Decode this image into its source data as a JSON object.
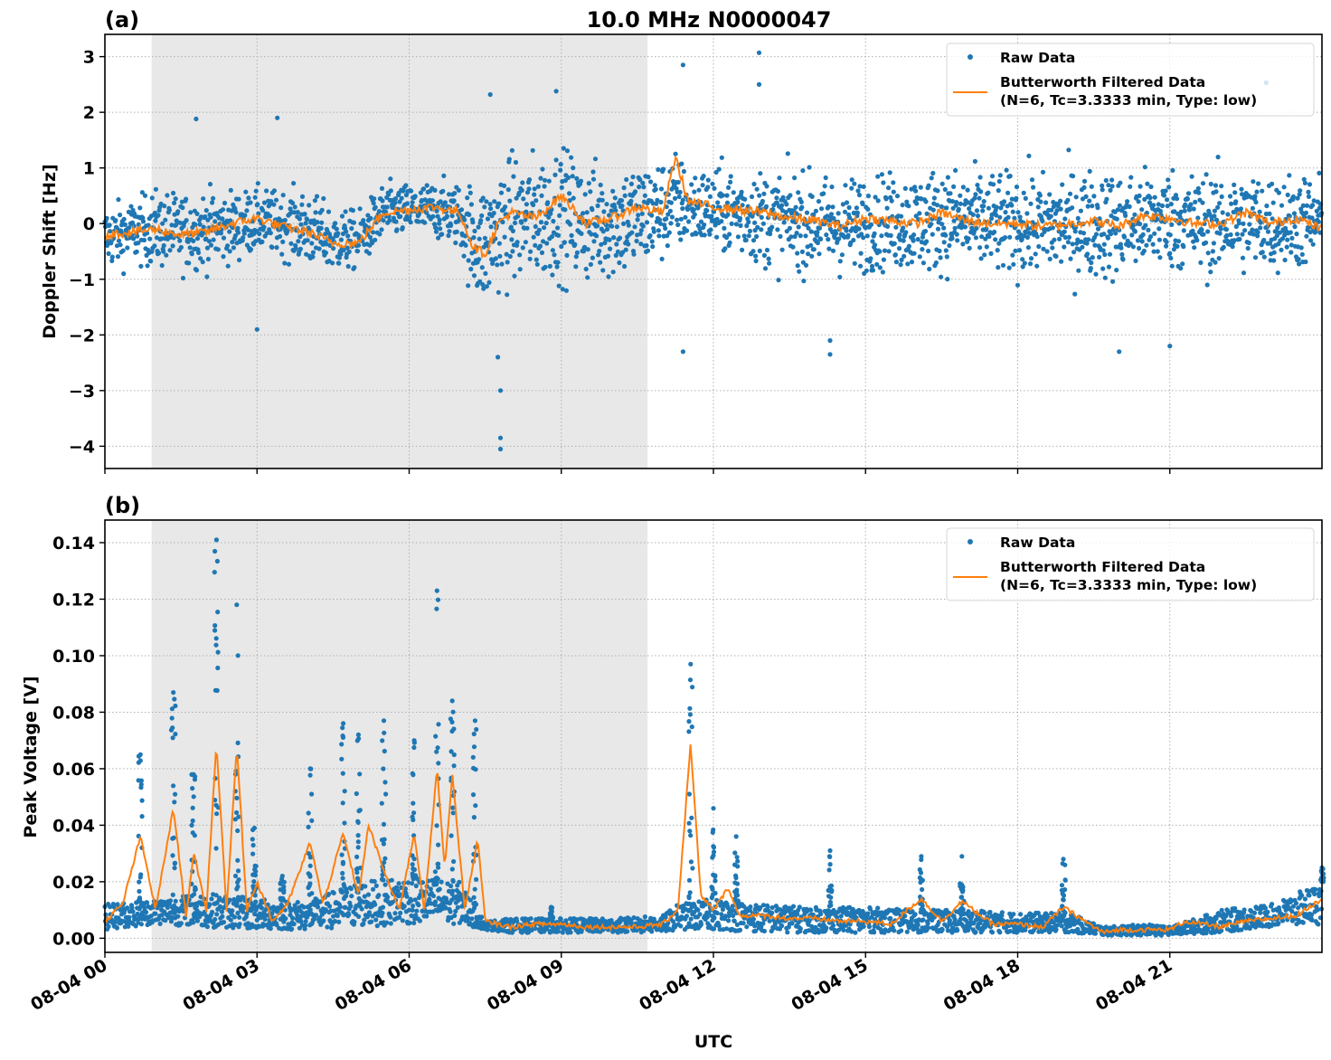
{
  "figure": {
    "title": "10.0 MHz N0000047",
    "xlabel": "UTC",
    "x_tick_labels": [
      "08-04 00",
      "08-04 03",
      "08-04 06",
      "08-04 09",
      "08-04 12",
      "08-04 15",
      "08-04 18",
      "08-04 21"
    ]
  },
  "colors": {
    "raw": "#1f77b4",
    "filtered": "#ff7f0e",
    "shade": "#e8e8e8",
    "grid": "#b0b0b0"
  },
  "chart_data": [
    {
      "type": "scatter",
      "panel_label": "(a)",
      "title": "10.0 MHz N0000047",
      "xlabel": "",
      "ylabel": "Doppler Shift [Hz]",
      "x_unit": "hours UTC since 08-04 00:00",
      "xlim": [
        0,
        24
      ],
      "ylim": [
        -4.4,
        3.4
      ],
      "y_ticks": [
        3,
        2,
        1,
        0,
        -1,
        -2,
        -3,
        -4
      ],
      "y_tick_labels": [
        "3",
        "2",
        "1",
        "0",
        "−1",
        "−2",
        "−3",
        "−4"
      ],
      "grid": true,
      "shaded_interval_hours": [
        0.92,
        10.7
      ],
      "legend": {
        "position": "top-right",
        "entries": [
          "Raw Data",
          "Butterworth Filtered Data",
          "(N=6, Tc=3.3333 min, Type: low)"
        ]
      },
      "series": [
        {
          "name": "Raw Data",
          "kind": "scatter",
          "x": [
            0,
            0.5,
            1,
            1.5,
            2,
            2.5,
            3,
            3.5,
            4,
            4.5,
            5,
            5.5,
            6,
            6.5,
            7,
            7.25,
            7.5,
            7.75,
            8,
            8.5,
            9,
            9.5,
            10,
            10.5,
            11,
            11.25,
            11.5,
            12,
            12.5,
            13,
            13.5,
            14,
            14.5,
            15,
            15.5,
            16,
            16.5,
            17,
            17.5,
            18,
            18.5,
            19,
            19.5,
            20,
            20.5,
            21,
            21.5,
            22,
            22.5,
            23,
            23.5,
            24
          ],
          "center": [
            -0.25,
            -0.15,
            -0.1,
            -0.15,
            -0.1,
            -0.05,
            0.05,
            0.0,
            -0.1,
            -0.3,
            -0.3,
            0.2,
            0.25,
            0.25,
            0.15,
            -0.3,
            -0.4,
            -0.1,
            0.05,
            0.1,
            0.2,
            0.0,
            0.05,
            0.1,
            0.25,
            0.4,
            0.3,
            0.25,
            0.2,
            0.1,
            0.05,
            0.0,
            -0.05,
            0.0,
            0.05,
            0.0,
            0.1,
            0.05,
            0.0,
            0.0,
            -0.05,
            0.0,
            0.0,
            -0.05,
            0.05,
            0.1,
            0.0,
            0.0,
            0.05,
            0.0,
            0.05,
            0.0
          ],
          "spread": [
            0.5,
            0.5,
            0.6,
            0.6,
            0.6,
            0.55,
            0.5,
            0.5,
            0.6,
            0.5,
            0.45,
            0.45,
            0.4,
            0.45,
            0.5,
            0.9,
            1.0,
            1.0,
            1.0,
            1.0,
            1.0,
            0.95,
            0.9,
            0.9,
            0.8,
            0.8,
            0.6,
            0.65,
            0.7,
            0.75,
            0.75,
            0.75,
            0.75,
            0.75,
            0.75,
            0.8,
            0.8,
            0.8,
            0.8,
            0.8,
            0.8,
            0.85,
            0.85,
            0.85,
            0.8,
            0.8,
            0.8,
            0.8,
            0.8,
            0.75,
            0.75,
            0.75
          ],
          "y_min": -4.05,
          "y_max": 3.07
        },
        {
          "name": "Butterworth Filtered Data",
          "kind": "line",
          "x": [
            0,
            0.5,
            1,
            1.5,
            2,
            2.5,
            3,
            3.5,
            4,
            4.5,
            5,
            5.5,
            6,
            6.5,
            7,
            7.25,
            7.5,
            7.75,
            8,
            8.5,
            9,
            9.5,
            10,
            10.5,
            11,
            11.25,
            11.5,
            12,
            12.5,
            13,
            13.5,
            14,
            14.5,
            15,
            15.5,
            16,
            16.5,
            17,
            17.5,
            18,
            18.5,
            19,
            19.5,
            20,
            20.5,
            21,
            21.5,
            22,
            22.5,
            23,
            23.5,
            24
          ],
          "y": [
            -0.2,
            -0.15,
            -0.1,
            -0.2,
            -0.15,
            0.0,
            0.1,
            -0.05,
            -0.15,
            -0.35,
            -0.35,
            0.2,
            0.25,
            0.3,
            0.2,
            -0.4,
            -0.55,
            0.0,
            0.2,
            0.1,
            0.5,
            0.0,
            0.1,
            0.3,
            0.2,
            1.2,
            0.4,
            0.3,
            0.25,
            0.2,
            0.1,
            0.05,
            -0.05,
            0.1,
            0.05,
            0.0,
            0.2,
            0.05,
            0.0,
            0.0,
            -0.05,
            0.0,
            0.05,
            -0.05,
            0.15,
            0.1,
            0.0,
            0.0,
            0.2,
            0.0,
            0.1,
            -0.1
          ]
        }
      ]
    },
    {
      "type": "scatter",
      "panel_label": "(b)",
      "title": "",
      "xlabel": "UTC",
      "ylabel": "Peak Voltage [V]",
      "x_unit": "hours UTC since 08-04 00:00",
      "xlim": [
        0,
        24
      ],
      "ylim": [
        -0.005,
        0.148
      ],
      "y_ticks": [
        0.14,
        0.12,
        0.1,
        0.08,
        0.06,
        0.04,
        0.02,
        0.0
      ],
      "y_tick_labels": [
        "0.14",
        "0.12",
        "0.10",
        "0.08",
        "0.06",
        "0.04",
        "0.02",
        "0.00"
      ],
      "grid": true,
      "shaded_interval_hours": [
        0.92,
        10.7
      ],
      "legend": {
        "position": "top-right",
        "entries": [
          "Raw Data",
          "Butterworth Filtered Data",
          "(N=6, Tc=3.3333 min, Type: low)"
        ]
      },
      "series": [
        {
          "name": "Raw Data",
          "kind": "scatter",
          "peaks": [
            {
              "x": 0.7,
              "y": 0.065
            },
            {
              "x": 1.35,
              "y": 0.087
            },
            {
              "x": 1.75,
              "y": 0.058
            },
            {
              "x": 2.2,
              "y": 0.141
            },
            {
              "x": 2.6,
              "y": 0.118
            },
            {
              "x": 2.95,
              "y": 0.039
            },
            {
              "x": 3.5,
              "y": 0.022
            },
            {
              "x": 4.05,
              "y": 0.06
            },
            {
              "x": 4.7,
              "y": 0.076
            },
            {
              "x": 5.0,
              "y": 0.072
            },
            {
              "x": 5.5,
              "y": 0.077
            },
            {
              "x": 6.1,
              "y": 0.07
            },
            {
              "x": 6.55,
              "y": 0.123
            },
            {
              "x": 6.85,
              "y": 0.084
            },
            {
              "x": 7.3,
              "y": 0.077
            },
            {
              "x": 8.8,
              "y": 0.011
            },
            {
              "x": 11.55,
              "y": 0.097
            },
            {
              "x": 12.0,
              "y": 0.046
            },
            {
              "x": 12.45,
              "y": 0.036
            },
            {
              "x": 14.3,
              "y": 0.031
            },
            {
              "x": 16.1,
              "y": 0.029
            },
            {
              "x": 16.9,
              "y": 0.029
            },
            {
              "x": 18.9,
              "y": 0.028
            },
            {
              "x": 24.0,
              "y": 0.025
            }
          ],
          "baseline": {
            "x": [
              0,
              1,
              2,
              3,
              4,
              5,
              6,
              7,
              7.5,
              8,
              9,
              10,
              11,
              11.3,
              12,
              13,
              14,
              15,
              16,
              17,
              18,
              19,
              19.7,
              20.5,
              21,
              22,
              23,
              24
            ],
            "low": [
              0.003,
              0.005,
              0.004,
              0.003,
              0.003,
              0.004,
              0.005,
              0.005,
              0.003,
              0.002,
              0.002,
              0.002,
              0.002,
              0.003,
              0.003,
              0.002,
              0.002,
              0.002,
              0.002,
              0.002,
              0.002,
              0.002,
              0.001,
              0.001,
              0.001,
              0.002,
              0.004,
              0.005
            ],
            "high": [
              0.012,
              0.014,
              0.016,
              0.014,
              0.013,
              0.02,
              0.022,
              0.02,
              0.006,
              0.007,
              0.007,
              0.007,
              0.008,
              0.012,
              0.014,
              0.012,
              0.011,
              0.011,
              0.01,
              0.01,
              0.009,
              0.009,
              0.004,
              0.005,
              0.004,
              0.01,
              0.012,
              0.02
            ]
          }
        },
        {
          "name": "Butterworth Filtered Data",
          "kind": "line",
          "x": [
            0,
            0.35,
            0.7,
            1.0,
            1.35,
            1.6,
            1.75,
            2.0,
            2.2,
            2.4,
            2.6,
            2.8,
            3.0,
            3.3,
            3.6,
            4.05,
            4.3,
            4.7,
            5.0,
            5.2,
            5.5,
            5.8,
            6.1,
            6.3,
            6.55,
            6.7,
            6.85,
            7.1,
            7.35,
            7.5,
            8.0,
            8.5,
            9.0,
            9.5,
            10.0,
            10.5,
            11.0,
            11.3,
            11.55,
            11.75,
            12.0,
            12.3,
            12.5,
            13.0,
            13.5,
            14.0,
            14.5,
            15.0,
            15.5,
            16.1,
            16.5,
            16.9,
            17.5,
            18.0,
            18.5,
            18.9,
            19.5,
            19.7,
            20.0,
            20.5,
            21.0,
            21.3,
            22.0,
            22.5,
            23.0,
            23.5,
            24.0
          ],
          "y": [
            0.006,
            0.012,
            0.036,
            0.01,
            0.046,
            0.008,
            0.03,
            0.01,
            0.069,
            0.01,
            0.068,
            0.01,
            0.02,
            0.006,
            0.012,
            0.034,
            0.012,
            0.037,
            0.015,
            0.04,
            0.024,
            0.01,
            0.037,
            0.01,
            0.06,
            0.025,
            0.058,
            0.01,
            0.035,
            0.006,
            0.004,
            0.005,
            0.005,
            0.004,
            0.004,
            0.004,
            0.005,
            0.01,
            0.069,
            0.015,
            0.01,
            0.018,
            0.008,
            0.008,
            0.007,
            0.007,
            0.006,
            0.006,
            0.005,
            0.014,
            0.006,
            0.013,
            0.005,
            0.005,
            0.004,
            0.011,
            0.004,
            0.002,
            0.003,
            0.003,
            0.003,
            0.006,
            0.004,
            0.006,
            0.007,
            0.008,
            0.014
          ]
        }
      ]
    }
  ]
}
